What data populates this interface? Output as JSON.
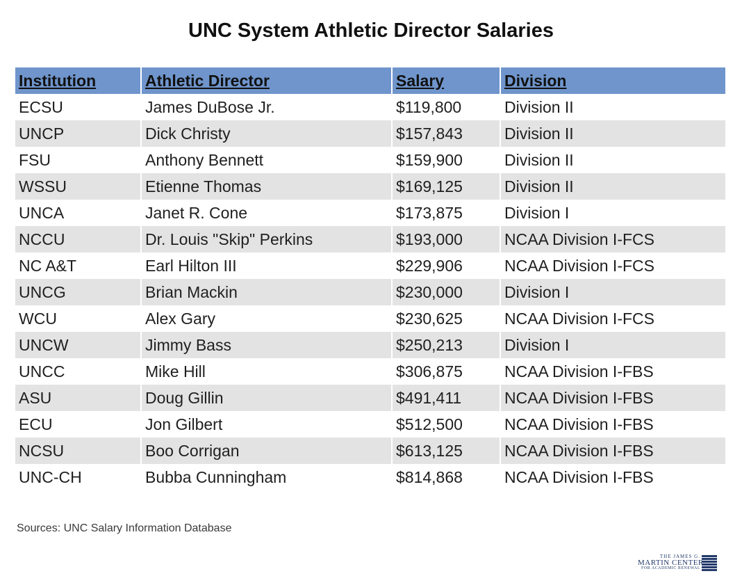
{
  "title": "UNC System Athletic Director Salaries",
  "table": {
    "headers": [
      "Institution",
      "Athletic Director",
      "Salary",
      "Division"
    ],
    "rows": [
      [
        "ECSU",
        "James DuBose Jr.",
        "$119,800",
        "Division II"
      ],
      [
        "UNCP",
        "Dick Christy",
        "$157,843",
        "Division II"
      ],
      [
        "FSU",
        "Anthony Bennett",
        "$159,900",
        "Division II"
      ],
      [
        "WSSU",
        "Etienne Thomas",
        "$169,125",
        "Division II"
      ],
      [
        "UNCA",
        "Janet R. Cone",
        "$173,875",
        "Division I"
      ],
      [
        "NCCU",
        "Dr. Louis \"Skip\" Perkins",
        "$193,000",
        "NCAA Division I-FCS"
      ],
      [
        "NC A&T",
        "Earl Hilton III",
        "$229,906",
        "NCAA Division I-FCS"
      ],
      [
        "UNCG",
        "Brian Mackin",
        "$230,000",
        "Division I"
      ],
      [
        "WCU",
        "Alex Gary",
        "$230,625",
        "NCAA Division I-FCS"
      ],
      [
        "UNCW",
        "Jimmy Bass",
        "$250,213",
        "Division I"
      ],
      [
        "UNCC",
        "Mike Hill",
        "$306,875",
        "NCAA Division I-FBS"
      ],
      [
        "ASU",
        "Doug Gillin",
        "$491,411",
        "NCAA Division I-FBS"
      ],
      [
        "ECU",
        "Jon Gilbert",
        "$512,500",
        "NCAA Division I-FBS"
      ],
      [
        "NCSU",
        "Boo Corrigan",
        "$613,125",
        "NCAA Division I-FBS"
      ],
      [
        "UNC-CH",
        "Bubba Cunningham",
        "$814,868",
        "NCAA Division I-FBS"
      ]
    ]
  },
  "source": "Sources: UNC Salary Information Database",
  "logo": {
    "line1": "THE JAMES G.",
    "line2": "MARTIN CENTER",
    "line3": "FOR ACADEMIC RENEWAL"
  },
  "colors": {
    "header_bg": "#6f95cc",
    "stripe_bg": "#e3e3e3",
    "logo": "#233a6b"
  }
}
